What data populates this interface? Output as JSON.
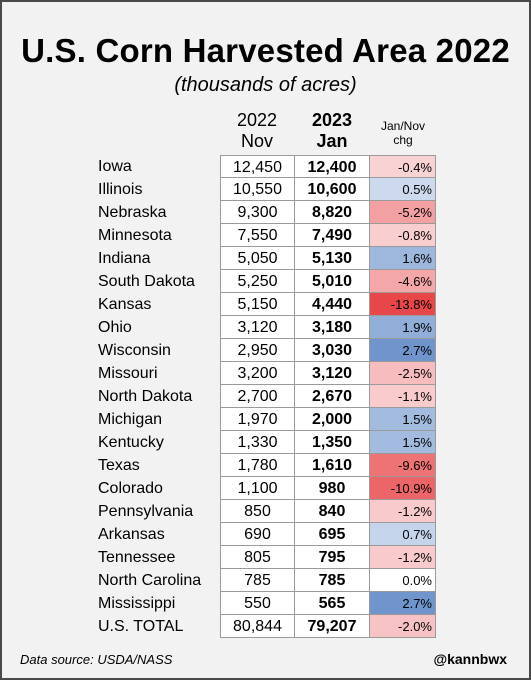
{
  "title": "U.S. Corn Harvested Area 2022",
  "subtitle": "(thousands of acres)",
  "columns": {
    "nov_year": "2022",
    "nov_month": "Nov",
    "jan_year": "2023",
    "jan_month": "Jan",
    "chg_line1": "Jan/Nov",
    "chg_line2": "chg"
  },
  "footer": {
    "source": "Data source: USDA/NASS",
    "handle": "@kannbwx"
  },
  "colors": {
    "negative_max": "#e8474a",
    "positive_max": "#6f95cc",
    "neutral": "#ffffff"
  },
  "chart_data": {
    "type": "table",
    "title": "U.S. Corn Harvested Area 2022",
    "subtitle": "(thousands of acres)",
    "columns": [
      "2022 Nov",
      "2023 Jan",
      "Jan/Nov chg"
    ],
    "rows": [
      {
        "state": "Iowa",
        "nov": "12,450",
        "jan": "12,400",
        "chg": "-0.4%",
        "chg_value": -0.4
      },
      {
        "state": "Illinois",
        "nov": "10,550",
        "jan": "10,600",
        "chg": "0.5%",
        "chg_value": 0.5
      },
      {
        "state": "Nebraska",
        "nov": "9,300",
        "jan": "8,820",
        "chg": "-5.2%",
        "chg_value": -5.2
      },
      {
        "state": "Minnesota",
        "nov": "7,550",
        "jan": "7,490",
        "chg": "-0.8%",
        "chg_value": -0.8
      },
      {
        "state": "Indiana",
        "nov": "5,050",
        "jan": "5,130",
        "chg": "1.6%",
        "chg_value": 1.6
      },
      {
        "state": "South Dakota",
        "nov": "5,250",
        "jan": "5,010",
        "chg": "-4.6%",
        "chg_value": -4.6
      },
      {
        "state": "Kansas",
        "nov": "5,150",
        "jan": "4,440",
        "chg": "-13.8%",
        "chg_value": -13.8
      },
      {
        "state": "Ohio",
        "nov": "3,120",
        "jan": "3,180",
        "chg": "1.9%",
        "chg_value": 1.9
      },
      {
        "state": "Wisconsin",
        "nov": "2,950",
        "jan": "3,030",
        "chg": "2.7%",
        "chg_value": 2.7
      },
      {
        "state": "Missouri",
        "nov": "3,200",
        "jan": "3,120",
        "chg": "-2.5%",
        "chg_value": -2.5
      },
      {
        "state": "North Dakota",
        "nov": "2,700",
        "jan": "2,670",
        "chg": "-1.1%",
        "chg_value": -1.1
      },
      {
        "state": "Michigan",
        "nov": "1,970",
        "jan": "2,000",
        "chg": "1.5%",
        "chg_value": 1.5
      },
      {
        "state": "Kentucky",
        "nov": "1,330",
        "jan": "1,350",
        "chg": "1.5%",
        "chg_value": 1.5
      },
      {
        "state": "Texas",
        "nov": "1,780",
        "jan": "1,610",
        "chg": "-9.6%",
        "chg_value": -9.6
      },
      {
        "state": "Colorado",
        "nov": "1,100",
        "jan": "980",
        "chg": "-10.9%",
        "chg_value": -10.9
      },
      {
        "state": "Pennsylvania",
        "nov": "850",
        "jan": "840",
        "chg": "-1.2%",
        "chg_value": -1.2
      },
      {
        "state": "Arkansas",
        "nov": "690",
        "jan": "695",
        "chg": "0.7%",
        "chg_value": 0.7
      },
      {
        "state": "Tennessee",
        "nov": "805",
        "jan": "795",
        "chg": "-1.2%",
        "chg_value": -1.2
      },
      {
        "state": "North Carolina",
        "nov": "785",
        "jan": "785",
        "chg": "0.0%",
        "chg_value": 0.0
      },
      {
        "state": "Mississippi",
        "nov": "550",
        "jan": "565",
        "chg": "2.7%",
        "chg_value": 2.7
      },
      {
        "state": "U.S. TOTAL",
        "nov": "80,844",
        "jan": "79,207",
        "chg": "-2.0%",
        "chg_value": -2.0
      }
    ]
  }
}
